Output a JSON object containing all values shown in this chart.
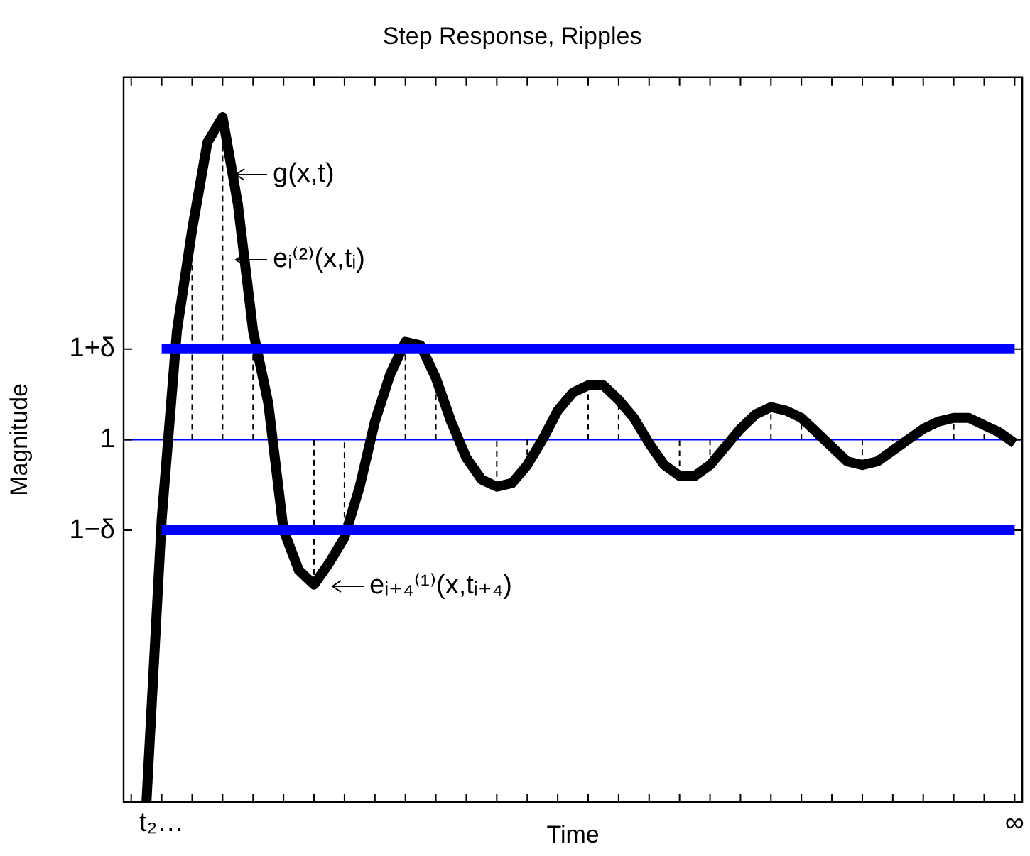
{
  "chart_data": {
    "type": "line",
    "title": "Step Response, Ripples",
    "xlabel": "Time",
    "ylabel": "Magnitude",
    "categories": [
      null,
      null,
      "t₂…",
      null,
      null,
      null,
      null,
      null,
      null,
      null,
      null,
      null,
      null,
      null,
      null,
      null,
      null,
      null,
      null,
      null,
      null,
      null,
      null,
      null,
      null,
      null,
      null,
      null,
      null,
      null,
      null,
      null,
      null,
      null,
      null,
      null,
      null,
      null,
      null,
      null,
      null,
      null,
      null,
      null,
      null,
      null,
      null,
      null,
      null,
      null,
      null,
      null,
      null,
      null,
      null,
      null,
      null,
      null,
      "∞"
    ],
    "ylim": [
      0,
      2
    ],
    "yticks": [
      {
        "value": 0.75,
        "label": "1−δ"
      },
      {
        "value": 1,
        "label": "1"
      },
      {
        "value": 1.25,
        "label": "1+δ"
      }
    ],
    "grid": false,
    "legend": false,
    "marker": "none",
    "line_style": "solid",
    "ref_lines": [
      {
        "axis": "y",
        "value": 1,
        "color": "#0000ff"
      }
    ],
    "series": [
      {
        "color": "#0000ff",
        "values": [
          null,
          null,
          1.25,
          1.25,
          1.25,
          1.25,
          1.25,
          1.25,
          1.25,
          1.25,
          1.25,
          1.25,
          1.25,
          1.25,
          1.25,
          1.25,
          1.25,
          1.25,
          1.25,
          1.25,
          1.25,
          1.25,
          1.25,
          1.25,
          1.25,
          1.25,
          1.25,
          1.25,
          1.25,
          1.25,
          1.25,
          1.25,
          1.25,
          1.25,
          1.25,
          1.25,
          1.25,
          1.25,
          1.25,
          1.25,
          1.25,
          1.25,
          1.25,
          1.25,
          1.25,
          1.25,
          1.25,
          1.25,
          1.25,
          1.25,
          1.25,
          1.25,
          1.25,
          1.25,
          1.25,
          1.25,
          1.25,
          1.25,
          1.25
        ]
      },
      {
        "color": "#0000ff",
        "values": [
          null,
          null,
          0.75,
          0.75,
          0.75,
          0.75,
          0.75,
          0.75,
          0.75,
          0.75,
          0.75,
          0.75,
          0.75,
          0.75,
          0.75,
          0.75,
          0.75,
          0.75,
          0.75,
          0.75,
          0.75,
          0.75,
          0.75,
          0.75,
          0.75,
          0.75,
          0.75,
          0.75,
          0.75,
          0.75,
          0.75,
          0.75,
          0.75,
          0.75,
          0.75,
          0.75,
          0.75,
          0.75,
          0.75,
          0.75,
          0.75,
          0.75,
          0.75,
          0.75,
          0.75,
          0.75,
          0.75,
          0.75,
          0.75,
          0.75,
          0.75,
          0.75,
          0.75,
          0.75,
          0.75,
          0.75,
          0.75,
          0.75,
          0.75
        ]
      },
      {
        "color": "#000000",
        "errors": [
          null,
          null,
          null,
          null,
          [
            1,
            1.58
          ],
          null,
          [
            1,
            1.89
          ],
          null,
          [
            1,
            1.3
          ],
          null,
          null,
          null,
          [
            0.6,
            1
          ],
          null,
          [
            0.73,
            1
          ],
          null,
          null,
          null,
          [
            1,
            1.27
          ],
          null,
          [
            1,
            1.17
          ],
          null,
          null,
          null,
          [
            0.87,
            1
          ],
          null,
          [
            0.93,
            1
          ],
          null,
          null,
          null,
          [
            1,
            1.15
          ],
          null,
          [
            1,
            1.11
          ],
          null,
          null,
          null,
          [
            0.9,
            1
          ],
          null,
          [
            0.93,
            1
          ],
          null,
          null,
          null,
          [
            1,
            1.09
          ],
          null,
          [
            1,
            1.06
          ],
          null,
          null,
          null,
          [
            0.93,
            1
          ],
          null,
          [
            0.97,
            1
          ],
          null,
          null,
          null,
          [
            1,
            1.06
          ],
          null,
          [
            1,
            1.04
          ],
          null,
          null
        ],
        "values": [
          null,
          0,
          0.78,
          1.3,
          1.58,
          1.82,
          1.89,
          1.65,
          1.3,
          1.1,
          0.75,
          0.64,
          0.6,
          0.66,
          0.73,
          0.87,
          1.05,
          1.18,
          1.27,
          1.26,
          1.17,
          1.05,
          0.95,
          0.89,
          0.87,
          0.88,
          0.93,
          1.0,
          1.08,
          1.13,
          1.15,
          1.15,
          1.11,
          1.06,
          0.99,
          0.93,
          0.9,
          0.9,
          0.93,
          0.98,
          1.03,
          1.07,
          1.09,
          1.08,
          1.06,
          1.02,
          0.98,
          0.94,
          0.93,
          0.94,
          0.97,
          1.0,
          1.03,
          1.05,
          1.06,
          1.06,
          1.04,
          1.02,
          0.99
        ]
      }
    ],
    "annotations": [
      "g(x,t)",
      "eᵢ⁽²⁾(x,tᵢ)",
      "eᵢ₊₄⁽¹⁾(x,tᵢ₊₄)"
    ]
  }
}
